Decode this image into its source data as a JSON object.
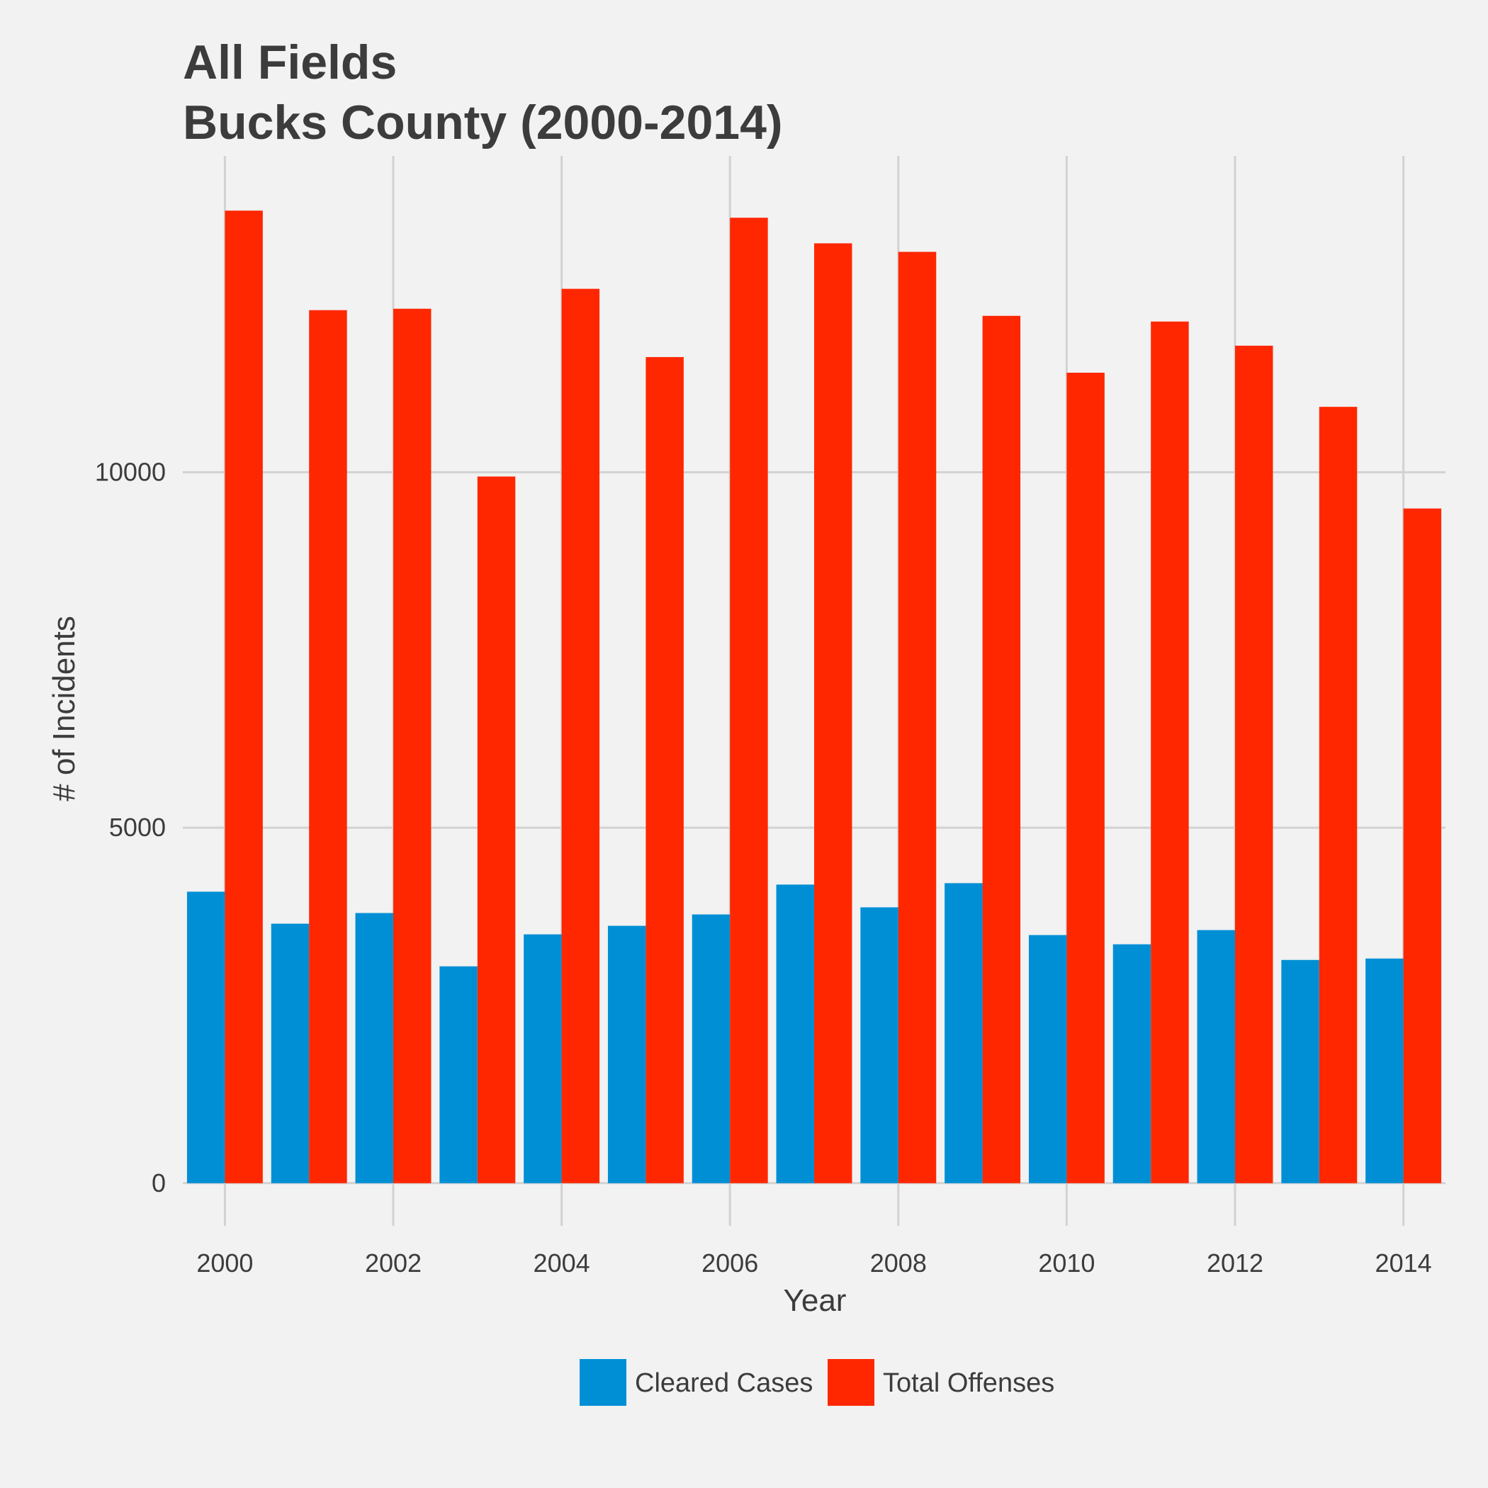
{
  "chart_data": {
    "type": "bar",
    "title_lines": [
      "All Fields",
      "Bucks County (2000-2014)"
    ],
    "xlabel": "Year",
    "ylabel": "# of Incidents",
    "x": [
      2000,
      2001,
      2002,
      2003,
      2004,
      2005,
      2006,
      2007,
      2008,
      2009,
      2010,
      2011,
      2012,
      2013,
      2014
    ],
    "x_ticks": [
      "2000",
      "2002",
      "2004",
      "2006",
      "2008",
      "2010",
      "2012",
      "2014"
    ],
    "y_ticks": [
      "0",
      "5000",
      "10000"
    ],
    "ylim": [
      -600,
      14450
    ],
    "grid": true,
    "legend_position": "bottom",
    "series": [
      {
        "name": "Cleared Cases",
        "color": "#008fd5",
        "values": [
          4100,
          3650,
          3800,
          3050,
          3500,
          3620,
          3780,
          4200,
          3880,
          4220,
          3490,
          3360,
          3560,
          3140,
          3160
        ]
      },
      {
        "name": "Total Offenses",
        "color": "#ff2700",
        "values": [
          13680,
          12280,
          12300,
          9940,
          12580,
          11620,
          13580,
          13220,
          13100,
          12200,
          11400,
          12120,
          11780,
          10920,
          9490
        ]
      }
    ]
  }
}
